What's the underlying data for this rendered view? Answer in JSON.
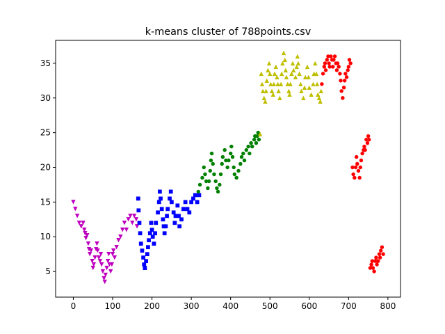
{
  "chart_data": {
    "type": "scatter",
    "title": "k-means cluster of 788points.csv",
    "xlabel": "",
    "ylabel": "",
    "xlim": [
      -45,
      832
    ],
    "ylim": [
      1.3,
      38.3
    ],
    "xticks": [
      0,
      100,
      200,
      300,
      400,
      500,
      600,
      700,
      800
    ],
    "yticks": [
      5,
      10,
      15,
      20,
      25,
      30,
      35
    ],
    "grid": false,
    "legend": "none",
    "series": [
      {
        "marker": "triangle-down",
        "color": "#bf00bf",
        "points": [
          [
            0,
            15
          ],
          [
            5,
            14
          ],
          [
            10,
            13
          ],
          [
            15,
            12
          ],
          [
            20,
            11.5
          ],
          [
            25,
            12
          ],
          [
            28,
            11
          ],
          [
            30,
            10.5
          ],
          [
            32,
            9.8
          ],
          [
            35,
            10.2
          ],
          [
            38,
            9
          ],
          [
            40,
            8.2
          ],
          [
            42,
            7.5
          ],
          [
            45,
            8
          ],
          [
            48,
            6.5
          ],
          [
            50,
            5.5
          ],
          [
            52,
            6
          ],
          [
            55,
            7
          ],
          [
            58,
            8.2
          ],
          [
            60,
            9
          ],
          [
            62,
            8
          ],
          [
            65,
            7
          ],
          [
            68,
            6.5
          ],
          [
            70,
            7.5
          ],
          [
            72,
            6
          ],
          [
            75,
            5
          ],
          [
            78,
            4
          ],
          [
            80,
            3.5
          ],
          [
            82,
            4.5
          ],
          [
            85,
            5.5
          ],
          [
            88,
            6.5
          ],
          [
            90,
            7.5
          ],
          [
            92,
            6
          ],
          [
            95,
            5
          ],
          [
            98,
            6
          ],
          [
            100,
            7.5
          ],
          [
            102,
            8
          ],
          [
            105,
            7
          ],
          [
            110,
            8.5
          ],
          [
            115,
            9.5
          ],
          [
            120,
            10
          ],
          [
            125,
            11
          ],
          [
            130,
            12
          ],
          [
            135,
            11
          ],
          [
            140,
            12.5
          ],
          [
            145,
            13
          ],
          [
            150,
            12
          ],
          [
            155,
            13
          ],
          [
            160,
            12.5
          ],
          [
            162,
            11.5
          ]
        ]
      },
      {
        "marker": "square",
        "color": "#0000ff",
        "points": [
          [
            165,
            15.5
          ],
          [
            166,
            13.8
          ],
          [
            168,
            12
          ],
          [
            170,
            10.5
          ],
          [
            172,
            9
          ],
          [
            175,
            8
          ],
          [
            178,
            7
          ],
          [
            180,
            6
          ],
          [
            182,
            5.5
          ],
          [
            185,
            6.5
          ],
          [
            188,
            7.5
          ],
          [
            190,
            8.5
          ],
          [
            192,
            9.5
          ],
          [
            195,
            10.5
          ],
          [
            198,
            12
          ],
          [
            200,
            11
          ],
          [
            202,
            10
          ],
          [
            205,
            9
          ],
          [
            208,
            10.5
          ],
          [
            210,
            12
          ],
          [
            215,
            13.5
          ],
          [
            218,
            15
          ],
          [
            220,
            16.5
          ],
          [
            222,
            15.5
          ],
          [
            225,
            14
          ],
          [
            228,
            12.5
          ],
          [
            230,
            11.5
          ],
          [
            232,
            10.5
          ],
          [
            235,
            11.5
          ],
          [
            238,
            13
          ],
          [
            240,
            14
          ],
          [
            245,
            15.5
          ],
          [
            248,
            16.5
          ],
          [
            250,
            15
          ],
          [
            255,
            13.5
          ],
          [
            258,
            12
          ],
          [
            260,
            13
          ],
          [
            265,
            14.5
          ],
          [
            268,
            13
          ],
          [
            270,
            11.5
          ],
          [
            275,
            12.5
          ],
          [
            280,
            14
          ],
          [
            285,
            15
          ],
          [
            290,
            14
          ],
          [
            295,
            13.5
          ],
          [
            300,
            15
          ],
          [
            305,
            15.5
          ],
          [
            310,
            16
          ],
          [
            315,
            15
          ],
          [
            320,
            16
          ]
        ]
      },
      {
        "marker": "circle",
        "color": "#008000",
        "points": [
          [
            318,
            16.5
          ],
          [
            322,
            17.5
          ],
          [
            328,
            18.5
          ],
          [
            332,
            20
          ],
          [
            335,
            19
          ],
          [
            338,
            18
          ],
          [
            342,
            17
          ],
          [
            345,
            18
          ],
          [
            348,
            19.5
          ],
          [
            350,
            21
          ],
          [
            352,
            22
          ],
          [
            355,
            20.5
          ],
          [
            358,
            19
          ],
          [
            362,
            18
          ],
          [
            365,
            17
          ],
          [
            368,
            16.5
          ],
          [
            372,
            17.5
          ],
          [
            375,
            19
          ],
          [
            378,
            20.5
          ],
          [
            380,
            21.5
          ],
          [
            385,
            22.5
          ],
          [
            388,
            21
          ],
          [
            392,
            20
          ],
          [
            395,
            21
          ],
          [
            400,
            22
          ],
          [
            402,
            23
          ],
          [
            405,
            21.5
          ],
          [
            408,
            20
          ],
          [
            410,
            19
          ],
          [
            415,
            18.5
          ],
          [
            420,
            19.5
          ],
          [
            425,
            20.5
          ],
          [
            428,
            21.5
          ],
          [
            432,
            22
          ],
          [
            435,
            21
          ],
          [
            440,
            22.5
          ],
          [
            445,
            23
          ],
          [
            448,
            22
          ],
          [
            452,
            23.5
          ],
          [
            455,
            23
          ],
          [
            460,
            24
          ],
          [
            462,
            24.5
          ],
          [
            465,
            23.5
          ],
          [
            468,
            24.5
          ],
          [
            470,
            25
          ],
          [
            472,
            24
          ]
        ]
      },
      {
        "marker": "triangle-up",
        "color": "#bfbf00",
        "points": [
          [
            475,
            24.8
          ],
          [
            478,
            33.5
          ],
          [
            480,
            32
          ],
          [
            482,
            31
          ],
          [
            485,
            30
          ],
          [
            488,
            29.5
          ],
          [
            490,
            31
          ],
          [
            492,
            32.5
          ],
          [
            495,
            34
          ],
          [
            498,
            35
          ],
          [
            500,
            33.5
          ],
          [
            502,
            32
          ],
          [
            505,
            31
          ],
          [
            508,
            30.5
          ],
          [
            510,
            32
          ],
          [
            512,
            33.5
          ],
          [
            515,
            34.5
          ],
          [
            518,
            33
          ],
          [
            520,
            32
          ],
          [
            522,
            31
          ],
          [
            525,
            30
          ],
          [
            528,
            32
          ],
          [
            530,
            33.5
          ],
          [
            532,
            35
          ],
          [
            535,
            36.5
          ],
          [
            538,
            35.5
          ],
          [
            540,
            34
          ],
          [
            542,
            33
          ],
          [
            545,
            32
          ],
          [
            548,
            31
          ],
          [
            550,
            30.5
          ],
          [
            552,
            32
          ],
          [
            555,
            33.5
          ],
          [
            558,
            35
          ],
          [
            560,
            34
          ],
          [
            565,
            33
          ],
          [
            568,
            34.5
          ],
          [
            570,
            36
          ],
          [
            572,
            35
          ],
          [
            575,
            33.5
          ],
          [
            578,
            32
          ],
          [
            580,
            31
          ],
          [
            585,
            30
          ],
          [
            588,
            31.5
          ],
          [
            590,
            33
          ],
          [
            595,
            34.5
          ],
          [
            598,
            33
          ],
          [
            600,
            31.5
          ],
          [
            605,
            30.5
          ],
          [
            610,
            32
          ],
          [
            612,
            33.5
          ],
          [
            615,
            35
          ],
          [
            618,
            33.5
          ],
          [
            620,
            32
          ],
          [
            622,
            30.5
          ],
          [
            625,
            30
          ],
          [
            628,
            29.5
          ],
          [
            630,
            31
          ]
        ]
      },
      {
        "marker": "circle",
        "color": "#ff0000",
        "points": [
          [
            632,
            32
          ],
          [
            635,
            33.5
          ],
          [
            638,
            34.5
          ],
          [
            640,
            35
          ],
          [
            642,
            34
          ],
          [
            645,
            35.5
          ],
          [
            648,
            36
          ],
          [
            650,
            35
          ],
          [
            652,
            34.5
          ],
          [
            655,
            36
          ],
          [
            658,
            35.5
          ],
          [
            660,
            34.5
          ],
          [
            662,
            35.5
          ],
          [
            665,
            36
          ],
          [
            668,
            35
          ],
          [
            670,
            34
          ],
          [
            672,
            35
          ],
          [
            675,
            34.5
          ],
          [
            678,
            33.5
          ],
          [
            680,
            32.5
          ],
          [
            682,
            31
          ],
          [
            685,
            30
          ],
          [
            688,
            31.5
          ],
          [
            690,
            32.5
          ],
          [
            692,
            33.5
          ],
          [
            695,
            33
          ],
          [
            698,
            34
          ],
          [
            700,
            34.5
          ],
          [
            702,
            35.5
          ],
          [
            705,
            35
          ],
          [
            710,
            20
          ],
          [
            712,
            19
          ],
          [
            715,
            18.5
          ],
          [
            718,
            20
          ],
          [
            720,
            21.5
          ],
          [
            722,
            20.5
          ],
          [
            725,
            19.5
          ],
          [
            728,
            18.5
          ],
          [
            730,
            20
          ],
          [
            732,
            21
          ],
          [
            735,
            22
          ],
          [
            738,
            22.5
          ],
          [
            740,
            23
          ],
          [
            742,
            22.5
          ],
          [
            745,
            24
          ],
          [
            748,
            23.5
          ],
          [
            750,
            24.5
          ],
          [
            752,
            24
          ],
          [
            755,
            5.5
          ],
          [
            758,
            6
          ],
          [
            760,
            6.5
          ],
          [
            762,
            5.5
          ],
          [
            765,
            5
          ],
          [
            768,
            6.5
          ],
          [
            770,
            7
          ],
          [
            772,
            6
          ],
          [
            775,
            6.5
          ],
          [
            778,
            7.5
          ],
          [
            780,
            7
          ],
          [
            782,
            8
          ],
          [
            785,
            8.5
          ],
          [
            788,
            7.5
          ]
        ]
      }
    ]
  }
}
